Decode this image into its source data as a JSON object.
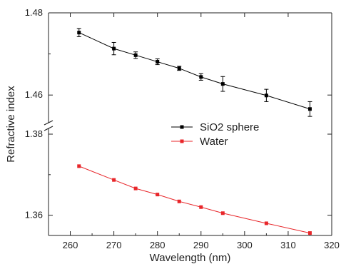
{
  "chart_data": {
    "type": "line",
    "title": "",
    "xlabel": "Wavelength (nm)",
    "ylabel": "Refractive index",
    "xlim": [
      255,
      320
    ],
    "x_ticks": [
      260,
      270,
      280,
      290,
      300,
      310,
      320
    ],
    "y_axis_break": true,
    "upper_panel": {
      "ylim": [
        1.455,
        1.48
      ],
      "y_ticks": [
        1.46,
        1.48
      ]
    },
    "lower_panel": {
      "ylim": [
        1.355,
        1.38
      ],
      "y_ticks": [
        1.36,
        1.38
      ]
    },
    "legend_position": "center-right",
    "grid": false,
    "series": [
      {
        "name": "SiO2 sphere",
        "color": "#000000",
        "marker": "square",
        "panel": "upper",
        "x": [
          262,
          270,
          275,
          280,
          285,
          290,
          295,
          305,
          315
        ],
        "y": [
          1.4752,
          1.4713,
          1.4697,
          1.4681,
          1.4665,
          1.4644,
          1.4627,
          1.4599,
          1.4566
        ],
        "error": [
          0.001,
          0.0015,
          0.0008,
          0.0007,
          0.0005,
          0.0008,
          0.0018,
          0.0015,
          0.0018
        ]
      },
      {
        "name": "Water",
        "color": "#e8262a",
        "marker": "square",
        "panel": "lower",
        "x": [
          262,
          270,
          275,
          280,
          285,
          290,
          295,
          305,
          315
        ],
        "y": [
          1.3721,
          1.3687,
          1.3666,
          1.3651,
          1.3634,
          1.362,
          1.3605,
          1.358,
          1.3556
        ]
      }
    ]
  }
}
